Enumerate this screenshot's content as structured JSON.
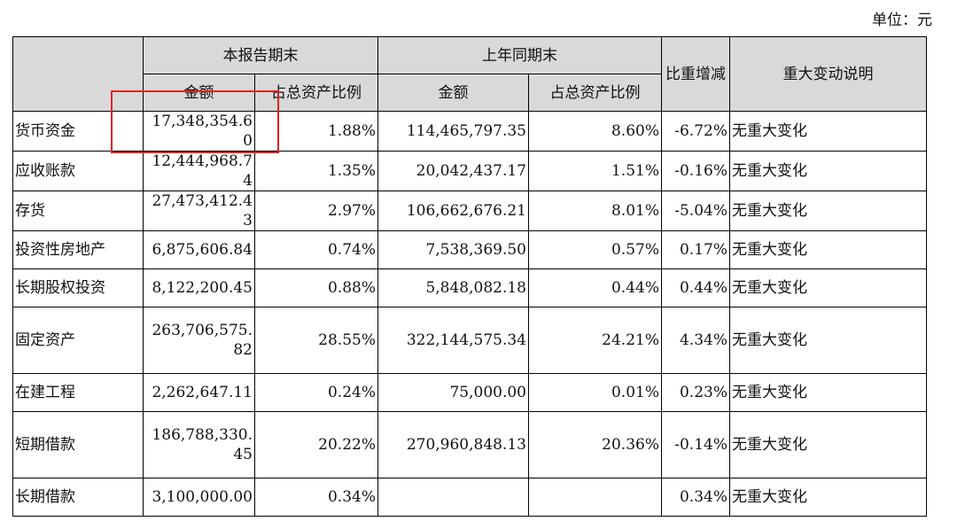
{
  "unit_label": "单位：元",
  "headers": {
    "current_period": "本报告期末",
    "prior_period": "上年同期末",
    "change": "比重增减",
    "notes": "重大变动说明",
    "amount": "金额",
    "ratio": "占总资产比例"
  },
  "rows": [
    {
      "item": "货币资金",
      "cur_amount": "17,348,354.60",
      "cur_ratio": "1.88%",
      "prev_amount": "114,465,797.35",
      "prev_ratio": "8.60%",
      "change": "-6.72%",
      "note": "无重大变化"
    },
    {
      "item": "应收账款",
      "cur_amount": "12,444,968.74",
      "cur_ratio": "1.35%",
      "prev_amount": "20,042,437.17",
      "prev_ratio": "1.51%",
      "change": "-0.16%",
      "note": "无重大变化"
    },
    {
      "item": "存货",
      "cur_amount": "27,473,412.43",
      "cur_ratio": "2.97%",
      "prev_amount": "106,662,676.21",
      "prev_ratio": "8.01%",
      "change": "-5.04%",
      "note": "无重大变化"
    },
    {
      "item": "投资性房地产",
      "cur_amount": "6,875,606.84",
      "cur_ratio": "0.74%",
      "prev_amount": "7,538,369.50",
      "prev_ratio": "0.57%",
      "change": "0.17%",
      "note": "无重大变化"
    },
    {
      "item": "长期股权投资",
      "cur_amount": "8,122,200.45",
      "cur_ratio": "0.88%",
      "prev_amount": "5,848,082.18",
      "prev_ratio": "0.44%",
      "change": "0.44%",
      "note": "无重大变化"
    },
    {
      "item": "固定资产",
      "cur_amount": "263,706,575.82",
      "cur_ratio": "28.55%",
      "prev_amount": "322,144,575.34",
      "prev_ratio": "24.21%",
      "change": "4.34%",
      "note": "无重大变化"
    },
    {
      "item": "在建工程",
      "cur_amount": "2,262,647.11",
      "cur_ratio": "0.24%",
      "prev_amount": "75,000.00",
      "prev_ratio": "0.01%",
      "change": "0.23%",
      "note": "无重大变化"
    },
    {
      "item": "短期借款",
      "cur_amount": "186,788,330.45",
      "cur_ratio": "20.22%",
      "prev_amount": "270,960,848.13",
      "prev_ratio": "20.36%",
      "change": "-0.14%",
      "note": "无重大变化"
    },
    {
      "item": "长期借款",
      "cur_amount": "3,100,000.00",
      "cur_ratio": "0.34%",
      "prev_amount": "",
      "prev_ratio": "",
      "change": "0.34%",
      "note": "无重大变化"
    }
  ]
}
